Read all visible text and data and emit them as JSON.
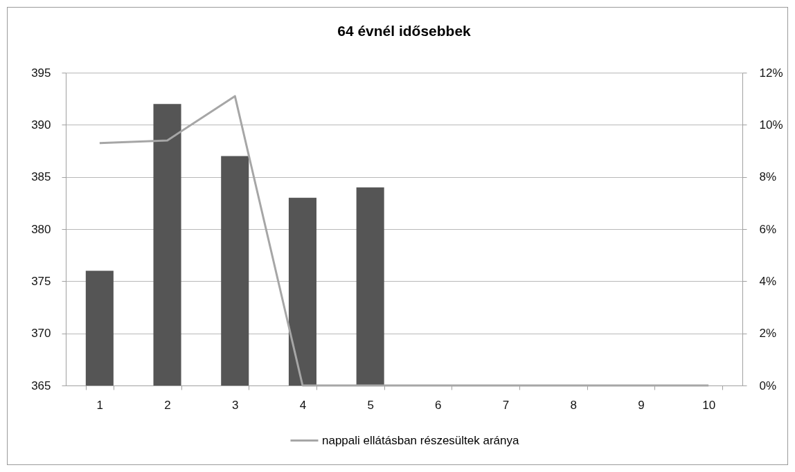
{
  "chart_data": {
    "type": "bar",
    "title": "64 évnél idősebbek",
    "categories": [
      "1",
      "2",
      "3",
      "4",
      "5",
      "6",
      "7",
      "8",
      "9",
      "10"
    ],
    "series": [
      {
        "color": "#555555",
        "values": [
          376,
          392,
          387,
          383,
          384,
          null,
          null,
          null,
          null,
          null
        ]
      },
      {
        "type": "line",
        "name": "nappali ellátásban részesültek aránya",
        "color": "#a6a6a6",
        "axis": "y2",
        "values": [
          9.3,
          9.4,
          11.1,
          0,
          0,
          0,
          0,
          0,
          0,
          0
        ]
      }
    ],
    "ylim": [
      365,
      395
    ],
    "yticks": [
      365,
      370,
      375,
      380,
      385,
      390,
      395
    ],
    "y2lim": [
      0,
      12
    ],
    "y2ticks": [
      {
        "value": 0,
        "label": "0%"
      },
      {
        "value": 2,
        "label": "2%"
      },
      {
        "value": 4,
        "label": "4%"
      },
      {
        "value": 6,
        "label": "6%"
      },
      {
        "value": 8,
        "label": "8%"
      },
      {
        "value": 10,
        "label": "10%"
      },
      {
        "value": 12,
        "label": "12%"
      }
    ],
    "grid": "y",
    "legend": "bottom",
    "marker": "none",
    "line_style": "solid"
  }
}
